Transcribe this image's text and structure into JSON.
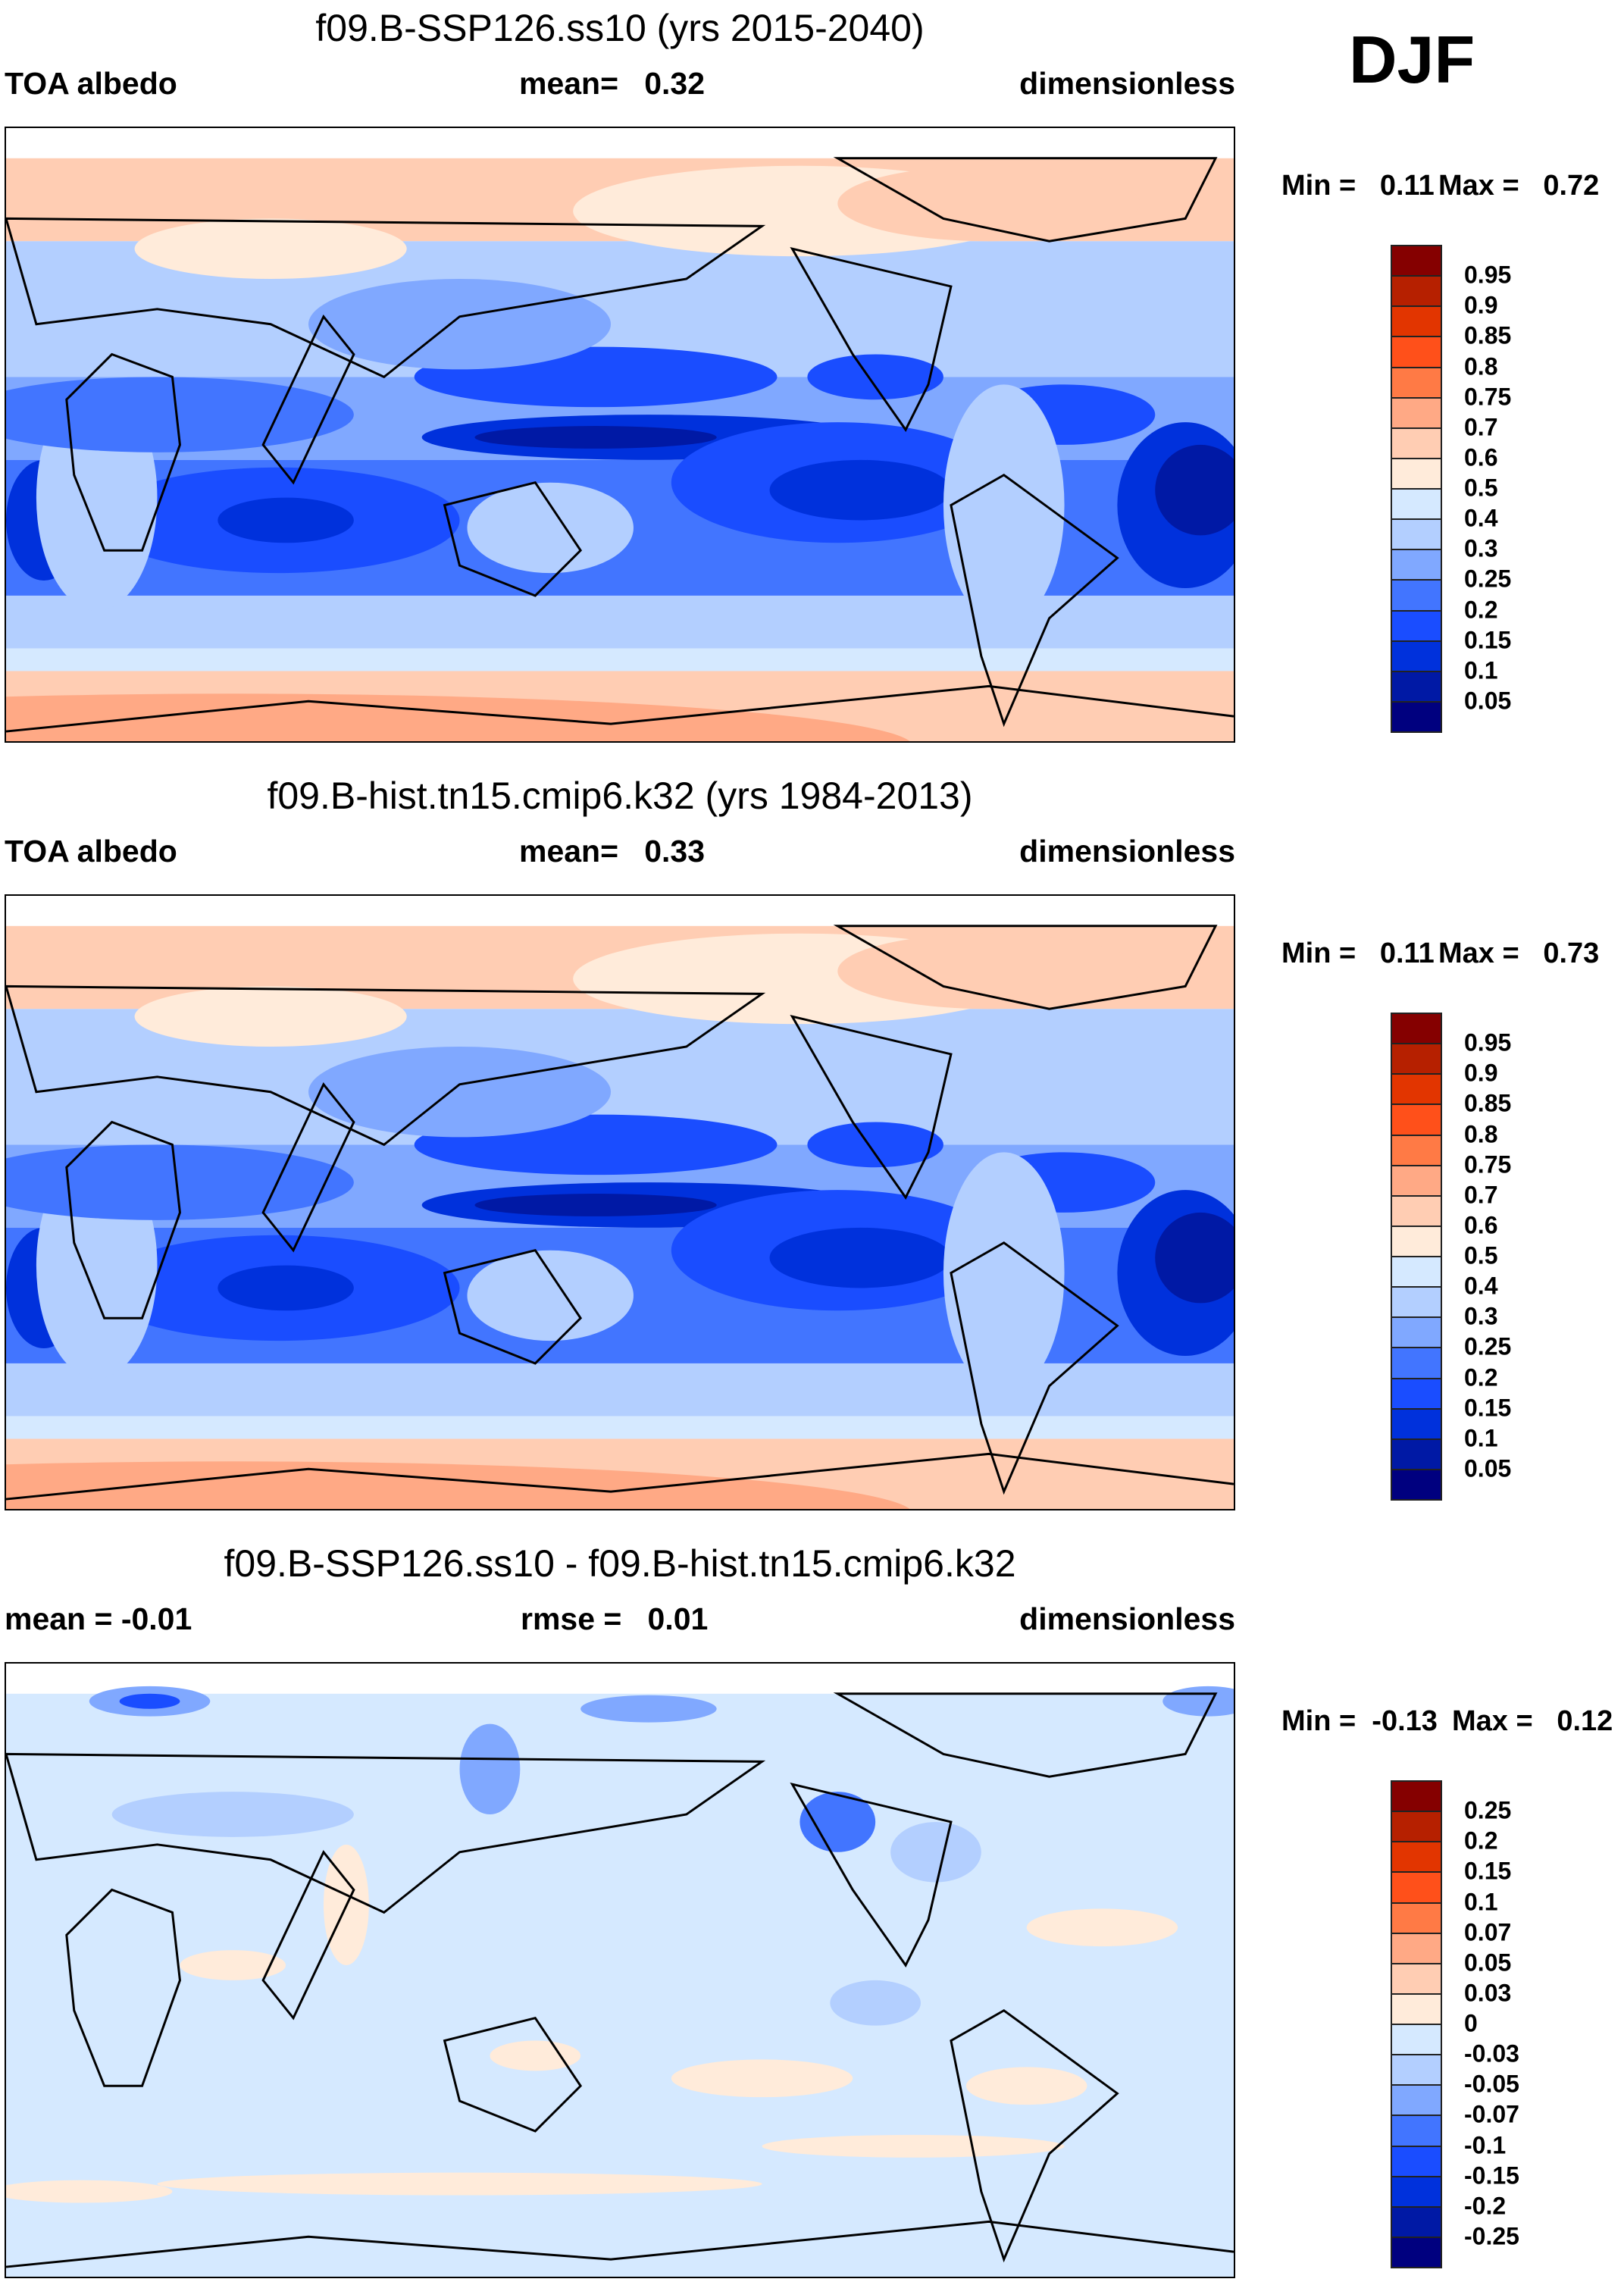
{
  "season": "DJF",
  "colors": {
    "scale": [
      "#00007f",
      "#0019a5",
      "#0031dc",
      "#1a4dff",
      "#4275ff",
      "#80a8ff",
      "#b3cfff",
      "#d5e9ff",
      "#ffebda",
      "#ffcdb3",
      "#ffa985",
      "#ff7a45",
      "#ff501a",
      "#e23500",
      "#b62000",
      "#850000"
    ],
    "coast": "#000000"
  },
  "chart_data": [
    {
      "type": "heatmap",
      "title": "f09.B-SSP126.ss10 (yrs 2015-2040)",
      "left_label": "TOA albedo",
      "center_label": "mean=   0.32",
      "right_label": "dimensionless",
      "min_label": "Min =   0.11",
      "max_label": "Max =   0.72",
      "levels": [
        "0.05",
        "0.1",
        "0.15",
        "0.2",
        "0.25",
        "0.3",
        "0.4",
        "0.5",
        "0.6",
        "0.7",
        "0.75",
        "0.8",
        "0.85",
        "0.9",
        "0.95"
      ],
      "kind": "absolute"
    },
    {
      "type": "heatmap",
      "title": "f09.B-hist.tn15.cmip6.k32 (yrs 1984-2013)",
      "left_label": "TOA albedo",
      "center_label": "mean=   0.33",
      "right_label": "dimensionless",
      "min_label": "Min =   0.11",
      "max_label": "Max =   0.73",
      "levels": [
        "0.05",
        "0.1",
        "0.15",
        "0.2",
        "0.25",
        "0.3",
        "0.4",
        "0.5",
        "0.6",
        "0.7",
        "0.75",
        "0.8",
        "0.85",
        "0.9",
        "0.95"
      ],
      "kind": "absolute"
    },
    {
      "type": "heatmap",
      "title": "f09.B-SSP126.ss10 - f09.B-hist.tn15.cmip6.k32",
      "left_label": "mean =  -0.01",
      "center_label": "rmse =   0.01",
      "right_label": "dimensionless",
      "min_label": "Min =  -0.13",
      "max_label": "Max =   0.12",
      "levels": [
        "-0.25",
        "-0.2",
        "-0.15",
        "-0.1",
        "-0.07",
        "-0.05",
        "-0.03",
        "0",
        "0.03",
        "0.05",
        "0.07",
        "0.1",
        "0.15",
        "0.2",
        "0.25"
      ],
      "kind": "difference"
    }
  ]
}
